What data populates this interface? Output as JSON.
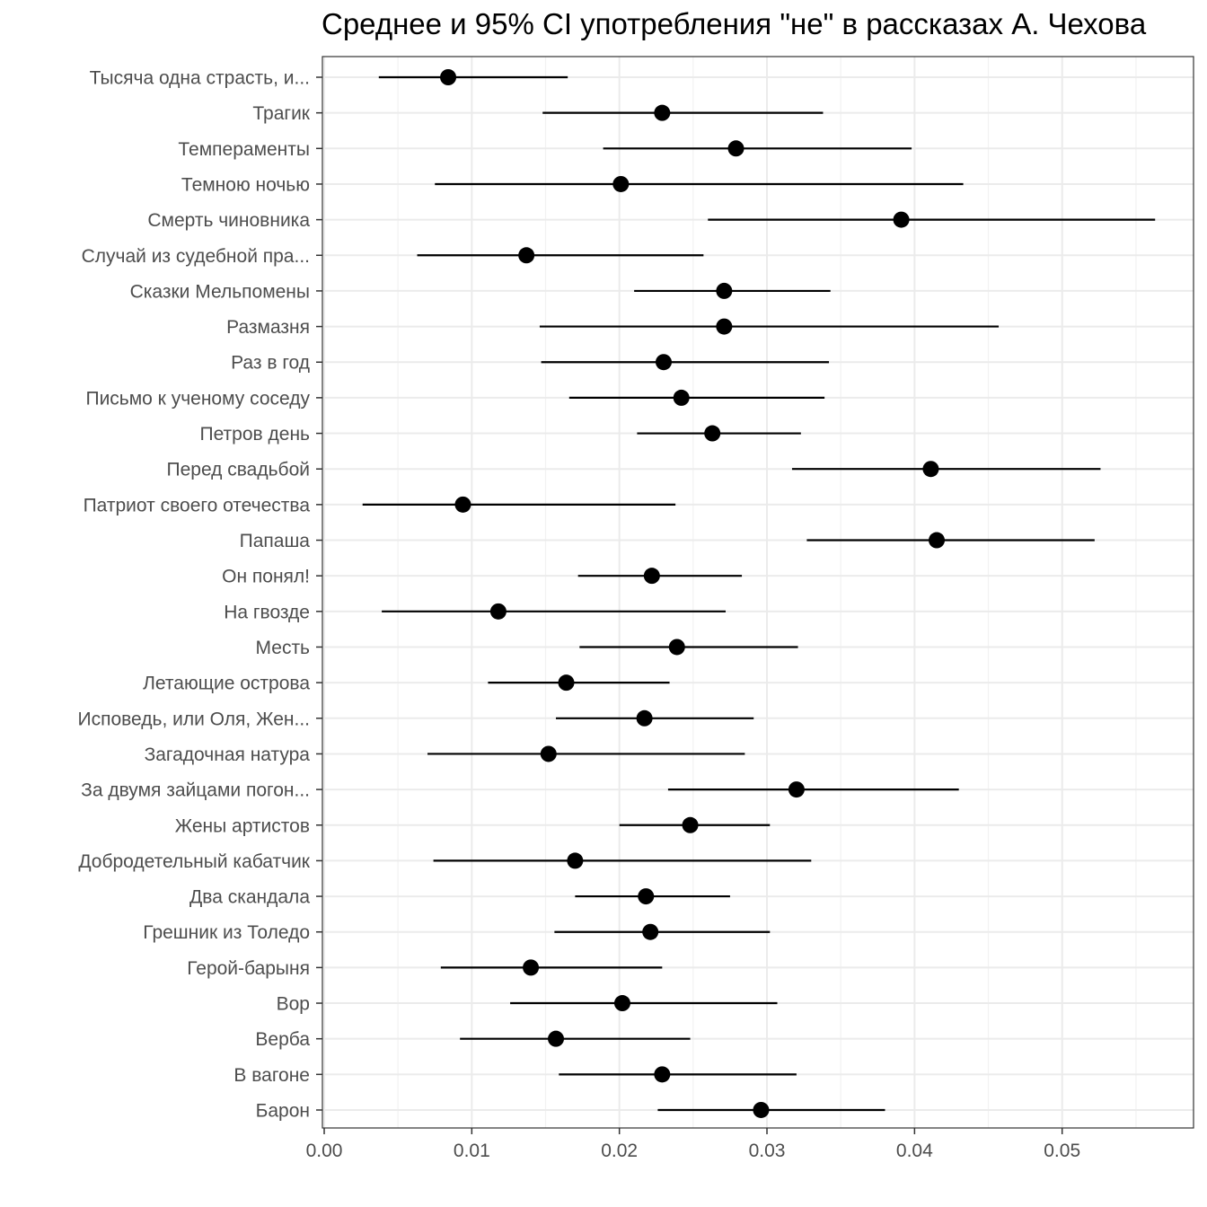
{
  "chart_data": {
    "type": "scatter",
    "title": "Среднее и 95% CI употребления \"не\" в рассказах А. Чехова",
    "xlabel": "",
    "ylabel": "",
    "xlim": [
      0.0,
      0.059
    ],
    "x_ticks": [
      "0.00",
      "0.01",
      "0.02",
      "0.03",
      "0.04",
      "0.05"
    ],
    "grid": true,
    "categories": [
      "Тысяча одна страсть, и...",
      "Трагик",
      "Темпераменты",
      "Темною ночью",
      "Смерть чиновника",
      "Случай из судебной пра...",
      "Сказки Мельпомены",
      "Размазня",
      "Раз в год",
      "Письмо к ученому соседу",
      "Петров день",
      "Перед свадьбой",
      "Патриот своего отечества",
      "Папаша",
      "Он понял!",
      "На гвозде",
      "Месть",
      "Летающие острова",
      "Исповедь, или Оля, Жен...",
      "Загадочная натура",
      "За двумя зайцами погон...",
      "Жены артистов",
      "Добродетельный кабатчик",
      "Два скандала",
      "Грешник из Толедо",
      "Герой-барыня",
      "Вор",
      "Верба",
      "В вагоне",
      "Барон"
    ],
    "series": [
      {
        "mean": [
          0.0084,
          0.0229,
          0.0279,
          0.0201,
          0.0391,
          0.0137,
          0.0271,
          0.0271,
          0.023,
          0.0242,
          0.0263,
          0.0411,
          0.0094,
          0.0415,
          0.0222,
          0.0118,
          0.0239,
          0.0164,
          0.0217,
          0.0152,
          0.032,
          0.0248,
          0.017,
          0.0218,
          0.0221,
          0.014,
          0.0202,
          0.0157,
          0.0229,
          0.0296
        ],
        "lower": [
          0.0037,
          0.0148,
          0.0189,
          0.0075,
          0.026,
          0.0063,
          0.021,
          0.0146,
          0.0147,
          0.0166,
          0.0212,
          0.0317,
          0.0026,
          0.0327,
          0.0172,
          0.0039,
          0.0173,
          0.0111,
          0.0157,
          0.007,
          0.0233,
          0.02,
          0.0074,
          0.017,
          0.0156,
          0.0079,
          0.0126,
          0.0092,
          0.0159,
          0.0226
        ],
        "upper": [
          0.0165,
          0.0338,
          0.0398,
          0.0433,
          0.0563,
          0.0257,
          0.0343,
          0.0457,
          0.0342,
          0.0339,
          0.0323,
          0.0526,
          0.0238,
          0.0522,
          0.0283,
          0.0272,
          0.0321,
          0.0234,
          0.0291,
          0.0285,
          0.043,
          0.0302,
          0.033,
          0.0275,
          0.0302,
          0.0229,
          0.0307,
          0.0248,
          0.032,
          0.038
        ]
      }
    ]
  }
}
